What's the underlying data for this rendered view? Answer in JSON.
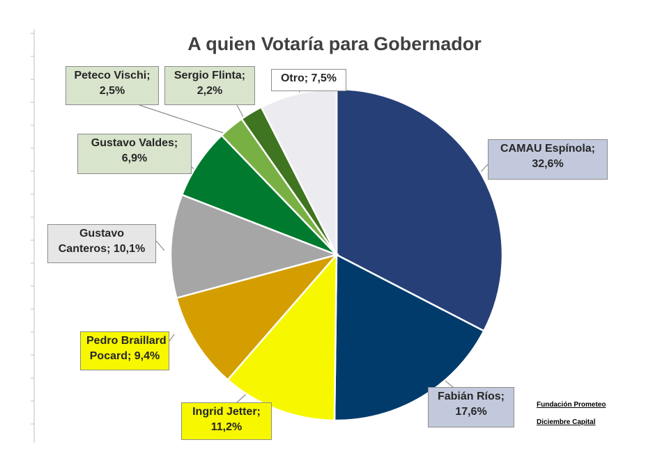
{
  "chart_data": {
    "type": "pie",
    "title": "A quien Votaría para Gobernador",
    "slices": [
      {
        "label": "CAMAU Espínola;",
        "value_label": "32,6%",
        "value": 32.6,
        "color": "#263f77",
        "label_bg": "#c2c9dc"
      },
      {
        "label": "Fabián Ríos;",
        "value_label": "17,6%",
        "value": 17.6,
        "color": "#003b6c",
        "label_bg": "#c2c9dc"
      },
      {
        "label": "Ingrid Jetter;",
        "value_label": "11,2%",
        "value": 11.2,
        "color": "#f7f700",
        "label_bg": "#f7f700"
      },
      {
        "label": "Pedro Braillard Pocard;",
        "value_label": "9,4%",
        "value": 9.4,
        "color": "#d49e00",
        "label_bg": "#f7f700"
      },
      {
        "label": "Gustavo Canteros;",
        "value_label": "10,1%",
        "value": 10.1,
        "color": "#a6a6a6",
        "label_bg": "#e6e6e6"
      },
      {
        "label": "Gustavo Valdes;",
        "value_label": "6,9%",
        "value": 6.9,
        "color": "#007a2e",
        "label_bg": "#d8e4cc"
      },
      {
        "label": "Peteco Vischi;",
        "value_label": "2,5%",
        "value": 2.5,
        "color": "#79b043",
        "label_bg": "#d8e4cc"
      },
      {
        "label": "Sergio Flinta;",
        "value_label": "2,2%",
        "value": 2.2,
        "color": "#3f7420",
        "label_bg": "#d8e4cc"
      },
      {
        "label": "Otro;",
        "value_label": "7,5%",
        "value": 7.5,
        "color": "#ececf0",
        "label_bg": "#ffffff"
      }
    ],
    "legend": "none"
  },
  "notes": {
    "line1": "Fundación Prometeo",
    "line2": "Diciembre Capital"
  }
}
